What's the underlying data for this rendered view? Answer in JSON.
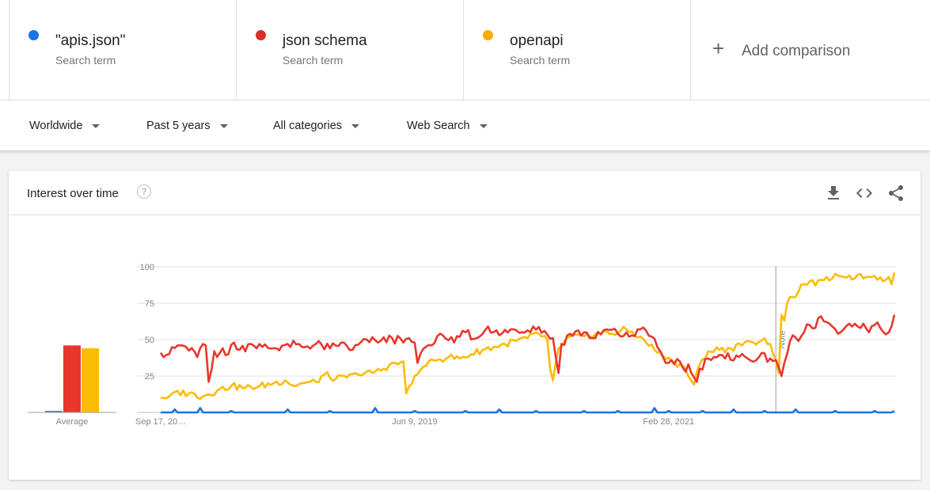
{
  "terms": [
    {
      "name": "\"apis.json\"",
      "sub": "Search term",
      "color": "#1a73e8"
    },
    {
      "name": "json schema",
      "sub": "Search term",
      "color": "#d93025"
    },
    {
      "name": "openapi",
      "sub": "Search term",
      "color": "#f9ab00"
    }
  ],
  "add": {
    "plus": "+",
    "label": "Add comparison"
  },
  "filters": {
    "region": "Worldwide",
    "period": "Past 5 years",
    "category": "All categories",
    "search_type": "Web Search"
  },
  "card": {
    "title": "Interest over time",
    "help": "?",
    "average_label": "Average",
    "note_label": "Note"
  },
  "icons": {
    "download": "download-icon",
    "embed": "embed-code-icon",
    "share": "share-icon"
  },
  "chart_data": {
    "type": "line",
    "x_start": "2017-09-17",
    "x_interval": "week",
    "num_points": 261,
    "x_tick_labels": [
      "Sep 17, 20…",
      "Jun 9, 2019",
      "Feb 28, 2021"
    ],
    "y_ticks": [
      25,
      50,
      75,
      100
    ],
    "ylim": [
      0,
      100
    ],
    "grid": true,
    "legend_placement": "top",
    "note_marker_index": 218,
    "series": [
      {
        "name": "\"apis.json\"",
        "color": "#1a73e8",
        "average": 1,
        "anchors": [
          [
            0,
            0
          ],
          [
            260,
            0
          ]
        ],
        "spikes": [
          [
            5,
            2
          ],
          [
            14,
            3
          ],
          [
            25,
            1
          ],
          [
            45,
            2
          ],
          [
            60,
            1
          ],
          [
            76,
            3
          ],
          [
            90,
            1
          ],
          [
            108,
            1
          ],
          [
            120,
            2
          ],
          [
            133,
            1
          ],
          [
            150,
            1
          ],
          [
            162,
            1
          ],
          [
            175,
            3
          ],
          [
            180,
            1
          ],
          [
            192,
            1
          ],
          [
            203,
            2
          ],
          [
            214,
            1
          ],
          [
            225,
            2
          ],
          [
            239,
            1
          ],
          [
            253,
            1
          ],
          [
            260,
            1
          ]
        ]
      },
      {
        "name": "json schema",
        "color": "#e8372d",
        "average": 46,
        "anchors": [
          [
            0,
            41
          ],
          [
            3,
            40
          ],
          [
            6,
            46
          ],
          [
            9,
            45
          ],
          [
            13,
            38
          ],
          [
            15,
            47
          ],
          [
            16,
            46
          ],
          [
            17,
            21
          ],
          [
            18,
            29
          ],
          [
            19,
            42
          ],
          [
            20,
            38
          ],
          [
            22,
            44
          ],
          [
            24,
            40
          ],
          [
            26,
            48
          ],
          [
            28,
            43
          ],
          [
            32,
            47
          ],
          [
            36,
            45
          ],
          [
            40,
            44
          ],
          [
            45,
            47
          ],
          [
            50,
            45
          ],
          [
            55,
            47
          ],
          [
            60,
            44
          ],
          [
            64,
            48
          ],
          [
            68,
            43
          ],
          [
            73,
            50
          ],
          [
            77,
            48
          ],
          [
            82,
            51
          ],
          [
            86,
            48
          ],
          [
            88,
            51
          ],
          [
            90,
            48
          ],
          [
            91,
            34
          ],
          [
            92,
            40
          ],
          [
            94,
            45
          ],
          [
            96,
            46
          ],
          [
            100,
            53
          ],
          [
            104,
            48
          ],
          [
            108,
            55
          ],
          [
            112,
            51
          ],
          [
            116,
            59
          ],
          [
            120,
            53
          ],
          [
            124,
            57
          ],
          [
            128,
            55
          ],
          [
            132,
            59
          ],
          [
            136,
            56
          ],
          [
            139,
            51
          ],
          [
            140,
            38
          ],
          [
            141,
            27
          ],
          [
            142,
            47
          ],
          [
            145,
            54
          ],
          [
            150,
            55
          ],
          [
            154,
            51
          ],
          [
            158,
            57
          ],
          [
            162,
            54
          ],
          [
            166,
            52
          ],
          [
            170,
            57
          ],
          [
            174,
            52
          ],
          [
            176,
            45
          ],
          [
            178,
            38
          ],
          [
            180,
            34
          ],
          [
            182,
            33
          ],
          [
            184,
            35
          ],
          [
            186,
            28
          ],
          [
            187,
            33
          ],
          [
            189,
            24
          ],
          [
            190,
            21
          ],
          [
            191,
            30
          ],
          [
            194,
            37
          ],
          [
            196,
            38
          ],
          [
            200,
            37
          ],
          [
            204,
            39
          ],
          [
            208,
            37
          ],
          [
            212,
            38
          ],
          [
            216,
            37
          ],
          [
            218,
            36
          ],
          [
            220,
            25
          ],
          [
            222,
            40
          ],
          [
            224,
            53
          ],
          [
            226,
            49
          ],
          [
            228,
            55
          ],
          [
            230,
            60
          ],
          [
            232,
            58
          ],
          [
            234,
            66
          ],
          [
            236,
            62
          ],
          [
            238,
            59
          ],
          [
            240,
            54
          ],
          [
            242,
            57
          ],
          [
            244,
            61
          ],
          [
            247,
            59
          ],
          [
            249,
            61
          ],
          [
            251,
            55
          ],
          [
            253,
            60
          ],
          [
            255,
            58
          ],
          [
            258,
            55
          ],
          [
            259,
            59
          ],
          [
            260,
            67
          ]
        ]
      },
      {
        "name": "openapi",
        "color": "#fbbc04",
        "average": 44,
        "anchors": [
          [
            0,
            10
          ],
          [
            3,
            11
          ],
          [
            5,
            14
          ],
          [
            10,
            13
          ],
          [
            15,
            11
          ],
          [
            20,
            15
          ],
          [
            25,
            18
          ],
          [
            30,
            17
          ],
          [
            35,
            18
          ],
          [
            40,
            20
          ],
          [
            44,
            22
          ],
          [
            48,
            18
          ],
          [
            50,
            20
          ],
          [
            55,
            21
          ],
          [
            58,
            26
          ],
          [
            62,
            23
          ],
          [
            66,
            24
          ],
          [
            70,
            26
          ],
          [
            75,
            27
          ],
          [
            79,
            30
          ],
          [
            82,
            34
          ],
          [
            84,
            33
          ],
          [
            86,
            35
          ],
          [
            87,
            13
          ],
          [
            88,
            18
          ],
          [
            90,
            25
          ],
          [
            94,
            32
          ],
          [
            98,
            36
          ],
          [
            102,
            38
          ],
          [
            106,
            37
          ],
          [
            110,
            40
          ],
          [
            114,
            43
          ],
          [
            118,
            45
          ],
          [
            122,
            47
          ],
          [
            126,
            49
          ],
          [
            130,
            51
          ],
          [
            134,
            54
          ],
          [
            137,
            50
          ],
          [
            138,
            30
          ],
          [
            139,
            22
          ],
          [
            141,
            44
          ],
          [
            145,
            52
          ],
          [
            150,
            52
          ],
          [
            155,
            55
          ],
          [
            160,
            54
          ],
          [
            165,
            57
          ],
          [
            170,
            52
          ],
          [
            175,
            43
          ],
          [
            178,
            39
          ],
          [
            181,
            35
          ],
          [
            185,
            32
          ],
          [
            188,
            22
          ],
          [
            189,
            19
          ],
          [
            191,
            33
          ],
          [
            194,
            42
          ],
          [
            198,
            43
          ],
          [
            202,
            44
          ],
          [
            206,
            46
          ],
          [
            210,
            48
          ],
          [
            214,
            51
          ],
          [
            216,
            47
          ],
          [
            218,
            36
          ],
          [
            219,
            27
          ],
          [
            220,
            67
          ],
          [
            221,
            63
          ],
          [
            222,
            75
          ],
          [
            224,
            79
          ],
          [
            226,
            83
          ],
          [
            228,
            88
          ],
          [
            230,
            90
          ],
          [
            232,
            87
          ],
          [
            234,
            91
          ],
          [
            236,
            93
          ],
          [
            238,
            92
          ],
          [
            240,
            94
          ],
          [
            242,
            93
          ],
          [
            244,
            94
          ],
          [
            246,
            92
          ],
          [
            248,
            95
          ],
          [
            250,
            93
          ],
          [
            252,
            93
          ],
          [
            254,
            91
          ],
          [
            256,
            90
          ],
          [
            258,
            93
          ],
          [
            259,
            88
          ],
          [
            260,
            96
          ]
        ]
      }
    ]
  }
}
